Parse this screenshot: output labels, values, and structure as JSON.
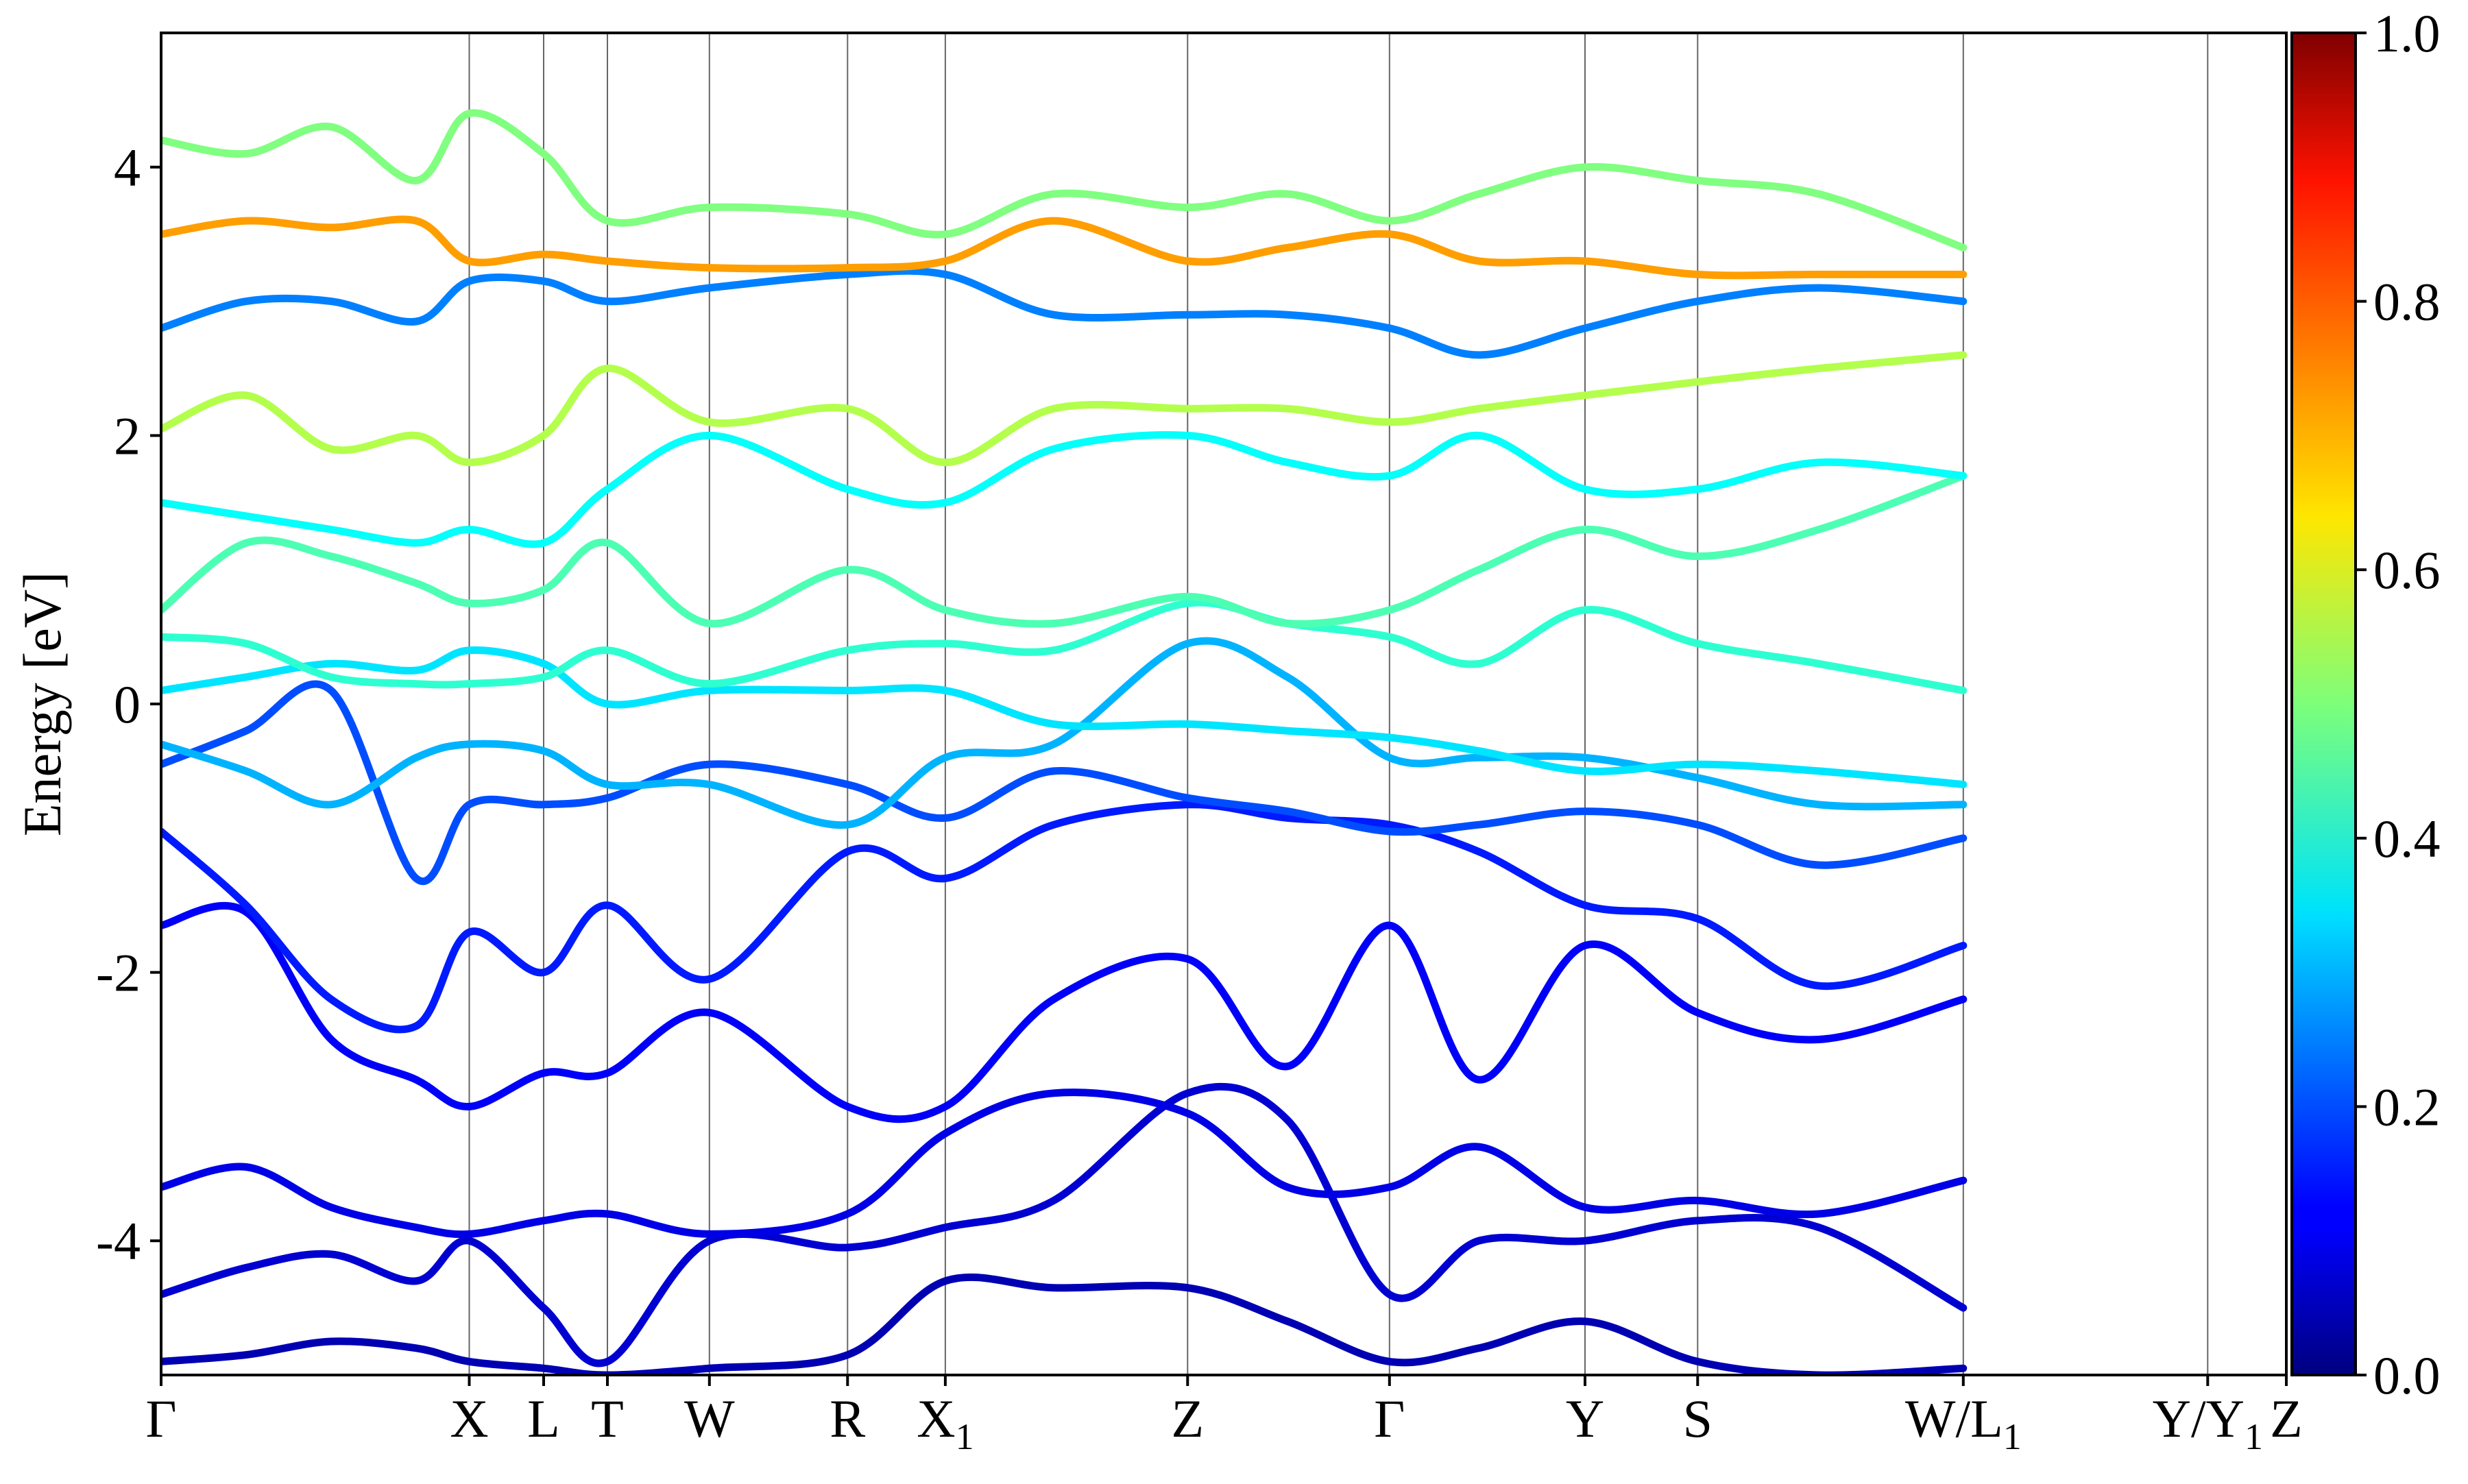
{
  "chart_data": {
    "type": "line",
    "title": "",
    "xlabel": "",
    "ylabel": "Energy [eV]",
    "ylim": [
      -5,
      5
    ],
    "yticks": [
      {
        "value": -4,
        "label": "-4"
      },
      {
        "value": -2,
        "label": "-2"
      },
      {
        "value": 0,
        "label": "0"
      },
      {
        "value": 2,
        "label": "2"
      },
      {
        "value": 4,
        "label": "4"
      }
    ],
    "kpath": [
      {
        "label": "Γ",
        "sub": "",
        "pos": 0.0
      },
      {
        "label": "X",
        "sub": "",
        "pos": 1.45
      },
      {
        "label": "L",
        "sub": "",
        "pos": 1.8
      },
      {
        "label": "T",
        "sub": "",
        "pos": 2.1
      },
      {
        "label": "W",
        "sub": "",
        "pos": 2.58
      },
      {
        "label": "R",
        "sub": "",
        "pos": 3.23
      },
      {
        "label": "X",
        "sub": "1",
        "pos": 3.69
      },
      {
        "label": "Z",
        "sub": "",
        "pos": 4.83
      },
      {
        "label": "Γ",
        "sub": "",
        "pos": 5.78
      },
      {
        "label": "Y",
        "sub": "",
        "pos": 6.7
      },
      {
        "label": "S",
        "sub": "",
        "pos": 7.23
      },
      {
        "label": "W/L",
        "sub": "1",
        "pos": 8.48
      },
      {
        "label": "Y/Y",
        "sub": "1",
        "pos": 9.63
      },
      {
        "label": "Z",
        "sub": "",
        "pos": 10.0
      }
    ],
    "grid": "vertical lines at high-symmetry points",
    "colorbar": {
      "colormap": "jet",
      "range": [
        0.0,
        1.0
      ],
      "ticks": [
        "0.0",
        "0.2",
        "0.4",
        "0.6",
        "0.8",
        "1.0"
      ]
    },
    "series": [
      {
        "x": [
          0,
          0.4,
          0.8,
          1.2,
          1.45,
          1.8,
          2.1,
          2.58,
          3.23,
          3.69,
          4.2,
          4.83,
          5.3,
          5.78,
          6.2,
          6.7,
          7.23,
          7.8,
          8.48
        ],
        "y": [
          -4.9,
          -4.85,
          -4.75,
          -4.8,
          -4.9,
          -4.95,
          -5.0,
          -4.95,
          -4.85,
          -4.3,
          -4.35,
          -4.35,
          -4.6,
          -4.9,
          -4.8,
          -4.6,
          -4.9,
          -5.0,
          -4.95
        ],
        "weight": 0.05
      },
      {
        "x": [
          0,
          0.4,
          0.8,
          1.2,
          1.45,
          1.8,
          2.1,
          2.58,
          3.23,
          3.69,
          4.2,
          4.83,
          5.3,
          5.78,
          6.2,
          6.7,
          7.23,
          7.8,
          8.48
        ],
        "y": [
          -4.4,
          -4.2,
          -4.1,
          -4.3,
          -4.0,
          -4.5,
          -4.9,
          -4.0,
          -4.05,
          -3.9,
          -3.7,
          -2.9,
          -3.1,
          -4.4,
          -4.0,
          -4.0,
          -3.85,
          -3.9,
          -4.5
        ],
        "weight": 0.08
      },
      {
        "x": [
          0,
          0.4,
          0.8,
          1.2,
          1.45,
          1.8,
          2.1,
          2.58,
          3.23,
          3.69,
          4.2,
          4.83,
          5.3,
          5.78,
          6.2,
          6.7,
          7.23,
          7.8,
          8.48
        ],
        "y": [
          -3.6,
          -3.45,
          -3.75,
          -3.9,
          -3.95,
          -3.85,
          -3.8,
          -3.95,
          -3.8,
          -3.2,
          -2.9,
          -3.05,
          -3.6,
          -3.6,
          -3.3,
          -3.75,
          -3.7,
          -3.8,
          -3.55
        ],
        "weight": 0.1
      },
      {
        "x": [
          0,
          0.4,
          0.8,
          1.2,
          1.45,
          1.8,
          2.1,
          2.58,
          3.23,
          3.69,
          4.2,
          4.83,
          5.3,
          5.78,
          6.2,
          6.7,
          7.23,
          7.8,
          8.48
        ],
        "y": [
          -1.65,
          -1.55,
          -2.5,
          -2.8,
          -3.0,
          -2.75,
          -2.75,
          -2.3,
          -3.0,
          -3.0,
          -2.2,
          -1.9,
          -2.7,
          -1.65,
          -2.8,
          -1.8,
          -2.3,
          -2.5,
          -2.2
        ],
        "weight": 0.12
      },
      {
        "x": [
          0,
          0.4,
          0.8,
          1.2,
          1.45,
          1.8,
          2.1,
          2.58,
          3.23,
          3.69,
          4.2,
          4.83,
          5.3,
          5.78,
          6.2,
          6.7,
          7.23,
          7.8,
          8.48
        ],
        "y": [
          -0.95,
          -1.5,
          -2.2,
          -2.4,
          -1.7,
          -2.0,
          -1.5,
          -2.05,
          -1.1,
          -1.3,
          -0.9,
          -0.75,
          -0.85,
          -0.9,
          -1.1,
          -1.5,
          -1.6,
          -2.1,
          -1.8
        ],
        "weight": 0.15
      },
      {
        "x": [
          0,
          0.4,
          0.8,
          1.2,
          1.45,
          1.8,
          2.1,
          2.58,
          3.23,
          3.69,
          4.2,
          4.83,
          5.3,
          5.78,
          6.2,
          6.7,
          7.23,
          7.8,
          8.48
        ],
        "y": [
          -0.45,
          -0.2,
          0.1,
          -1.3,
          -0.75,
          -0.75,
          -0.7,
          -0.45,
          -0.6,
          -0.85,
          -0.5,
          -0.7,
          -0.8,
          -0.95,
          -0.9,
          -0.8,
          -0.9,
          -1.2,
          -1.0
        ],
        "weight": 0.2
      },
      {
        "x": [
          0,
          0.4,
          0.8,
          1.2,
          1.45,
          1.8,
          2.1,
          2.58,
          3.23,
          3.69,
          4.2,
          4.83,
          5.3,
          5.78,
          6.2,
          6.7,
          7.23,
          7.8,
          8.48
        ],
        "y": [
          -0.3,
          -0.5,
          -0.75,
          -0.4,
          -0.3,
          -0.35,
          -0.6,
          -0.6,
          -0.9,
          -0.4,
          -0.3,
          0.45,
          0.2,
          -0.4,
          -0.4,
          -0.4,
          -0.55,
          -0.75,
          -0.75
        ],
        "weight": 0.3
      },
      {
        "x": [
          0,
          0.4,
          0.8,
          1.2,
          1.45,
          1.8,
          2.1,
          2.58,
          3.23,
          3.69,
          4.2,
          4.83,
          5.3,
          5.78,
          6.2,
          6.7,
          7.23,
          7.8,
          8.48
        ],
        "y": [
          0.1,
          0.2,
          0.3,
          0.25,
          0.4,
          0.3,
          0.0,
          0.1,
          0.1,
          0.1,
          -0.15,
          -0.15,
          -0.2,
          -0.25,
          -0.35,
          -0.5,
          -0.45,
          -0.5,
          -0.6
        ],
        "weight": 0.35
      },
      {
        "x": [
          0,
          0.4,
          0.8,
          1.2,
          1.45,
          1.8,
          2.1,
          2.58,
          3.23,
          3.69,
          4.2,
          4.83,
          5.3,
          5.78,
          6.2,
          6.7,
          7.23,
          7.8,
          8.48
        ],
        "y": [
          0.5,
          0.45,
          0.2,
          0.15,
          0.15,
          0.2,
          0.4,
          0.15,
          0.4,
          0.45,
          0.4,
          0.75,
          0.6,
          0.5,
          0.3,
          0.7,
          0.45,
          0.3,
          0.1
        ],
        "weight": 0.42
      },
      {
        "x": [
          0,
          0.4,
          0.8,
          1.2,
          1.45,
          1.8,
          2.1,
          2.58,
          3.23,
          3.69,
          4.2,
          4.83,
          5.3,
          5.78,
          6.2,
          6.7,
          7.23,
          7.8,
          8.48
        ],
        "y": [
          0.7,
          1.2,
          1.1,
          0.9,
          0.75,
          0.85,
          1.2,
          0.6,
          1.0,
          0.7,
          0.6,
          0.8,
          0.6,
          0.7,
          1.0,
          1.3,
          1.1,
          1.3,
          1.7
        ],
        "weight": 0.45
      },
      {
        "x": [
          0,
          0.4,
          0.8,
          1.2,
          1.45,
          1.8,
          2.1,
          2.58,
          3.23,
          3.69,
          4.2,
          4.83,
          5.3,
          5.78,
          6.2,
          6.7,
          7.23,
          7.8,
          8.48
        ],
        "y": [
          1.5,
          1.4,
          1.3,
          1.2,
          1.3,
          1.2,
          1.6,
          2.0,
          1.6,
          1.5,
          1.9,
          2.0,
          1.8,
          1.7,
          2.0,
          1.6,
          1.6,
          1.8,
          1.7
        ],
        "weight": 0.38
      },
      {
        "x": [
          0,
          0.4,
          0.8,
          1.2,
          1.45,
          1.8,
          2.1,
          2.58,
          3.23,
          3.69,
          4.2,
          4.83,
          5.3,
          5.78,
          6.2,
          6.7,
          7.23,
          7.8,
          8.48
        ],
        "y": [
          2.05,
          2.3,
          1.9,
          2.0,
          1.8,
          2.0,
          2.5,
          2.1,
          2.2,
          1.8,
          2.2,
          2.2,
          2.2,
          2.1,
          2.2,
          2.3,
          2.4,
          2.5,
          2.6
        ],
        "weight": 0.55
      },
      {
        "x": [
          0,
          0.4,
          0.8,
          1.2,
          1.45,
          1.8,
          2.1,
          2.58,
          3.23,
          3.69,
          4.2,
          4.83,
          5.3,
          5.78,
          6.2,
          6.7,
          7.23,
          7.8,
          8.48
        ],
        "y": [
          2.8,
          3.0,
          3.0,
          2.85,
          3.15,
          3.15,
          3.0,
          3.1,
          3.2,
          3.2,
          2.9,
          2.9,
          2.9,
          2.8,
          2.6,
          2.8,
          3.0,
          3.1,
          3.0
        ],
        "weight": 0.25
      },
      {
        "x": [
          0,
          0.4,
          0.8,
          1.2,
          1.45,
          1.8,
          2.1,
          2.58,
          3.23,
          3.69,
          4.2,
          4.83,
          5.3,
          5.78,
          6.2,
          6.7,
          7.23,
          7.8,
          8.48
        ],
        "y": [
          3.5,
          3.6,
          3.55,
          3.6,
          3.3,
          3.35,
          3.3,
          3.25,
          3.25,
          3.3,
          3.6,
          3.3,
          3.4,
          3.5,
          3.3,
          3.3,
          3.2,
          3.2,
          3.2
        ],
        "weight": 0.72
      },
      {
        "x": [
          0,
          0.4,
          0.8,
          1.2,
          1.45,
          1.8,
          2.1,
          2.58,
          3.23,
          3.69,
          4.2,
          4.83,
          5.3,
          5.78,
          6.2,
          6.7,
          7.23,
          7.8,
          8.48
        ],
        "y": [
          4.2,
          4.1,
          4.3,
          3.9,
          4.4,
          4.1,
          3.6,
          3.7,
          3.65,
          3.5,
          3.8,
          3.7,
          3.8,
          3.6,
          3.8,
          4.0,
          3.9,
          3.8,
          3.4
        ],
        "weight": 0.5
      }
    ]
  }
}
